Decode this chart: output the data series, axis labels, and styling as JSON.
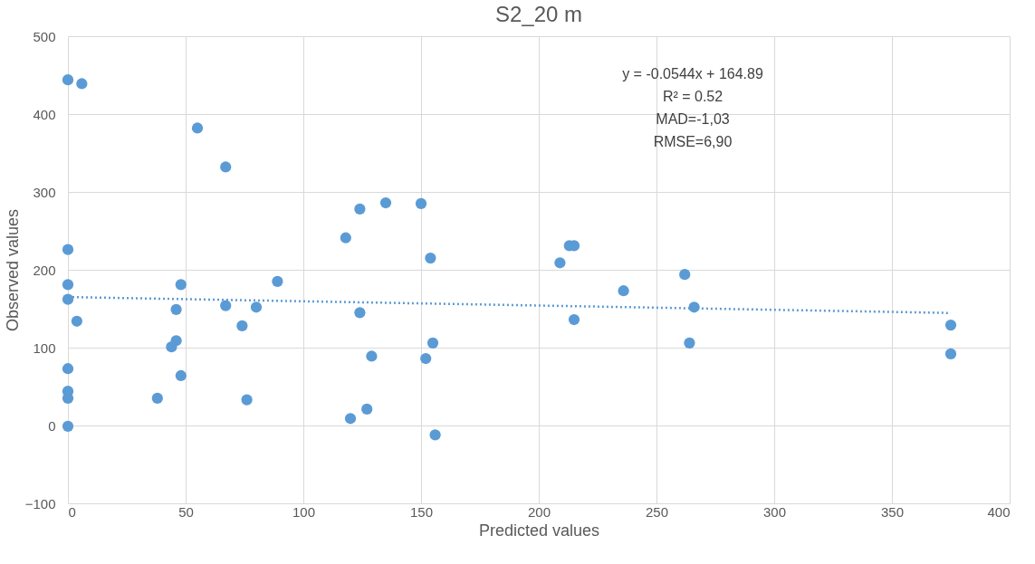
{
  "chart_data": {
    "type": "scatter",
    "title": "S2_20 m",
    "xlabel": "Predicted values",
    "ylabel": "Observed values",
    "xlim": [
      0,
      400
    ],
    "xticks": [
      0,
      50,
      100,
      150,
      200,
      250,
      300,
      350,
      400
    ],
    "ylim": [
      -100,
      500
    ],
    "yticks": [
      -100,
      0,
      100,
      200,
      300,
      400,
      500
    ],
    "grid": true,
    "legend": false,
    "marker": "circle",
    "annotations": [
      "y = -0.0544x + 164.89",
      "R² = 0.52",
      "MAD=-1,03",
      "RMSE=6,90"
    ],
    "series": [
      {
        "type": "scatter",
        "color": "#5b9bd5",
        "x": [
          0,
          5.9,
          0,
          0,
          0,
          3.8,
          0,
          0,
          0,
          0,
          55,
          67,
          48,
          46,
          67,
          80,
          89,
          46,
          44,
          48,
          38,
          74,
          76,
          118,
          124,
          135,
          150,
          154,
          124,
          129,
          152,
          155,
          120,
          127,
          156,
          209,
          213,
          215,
          215,
          236,
          262,
          266,
          264,
          375,
          375
        ],
        "values": [
          444,
          439,
          226,
          181,
          162,
          134,
          73,
          44,
          35,
          -1,
          382,
          332,
          181,
          149,
          154,
          152,
          185,
          109,
          101,
          64,
          35,
          128,
          33,
          241,
          278,
          286,
          285,
          215,
          145,
          89,
          86,
          106,
          9,
          21,
          -12,
          209,
          231,
          231,
          136,
          173,
          194,
          152,
          106,
          129,
          92
        ]
      },
      {
        "type": "line",
        "color": "#5b9bd5",
        "line_style": "dotted",
        "marker": "none",
        "x": [
          0,
          375
        ],
        "values": [
          165,
          144.5
        ]
      }
    ]
  }
}
